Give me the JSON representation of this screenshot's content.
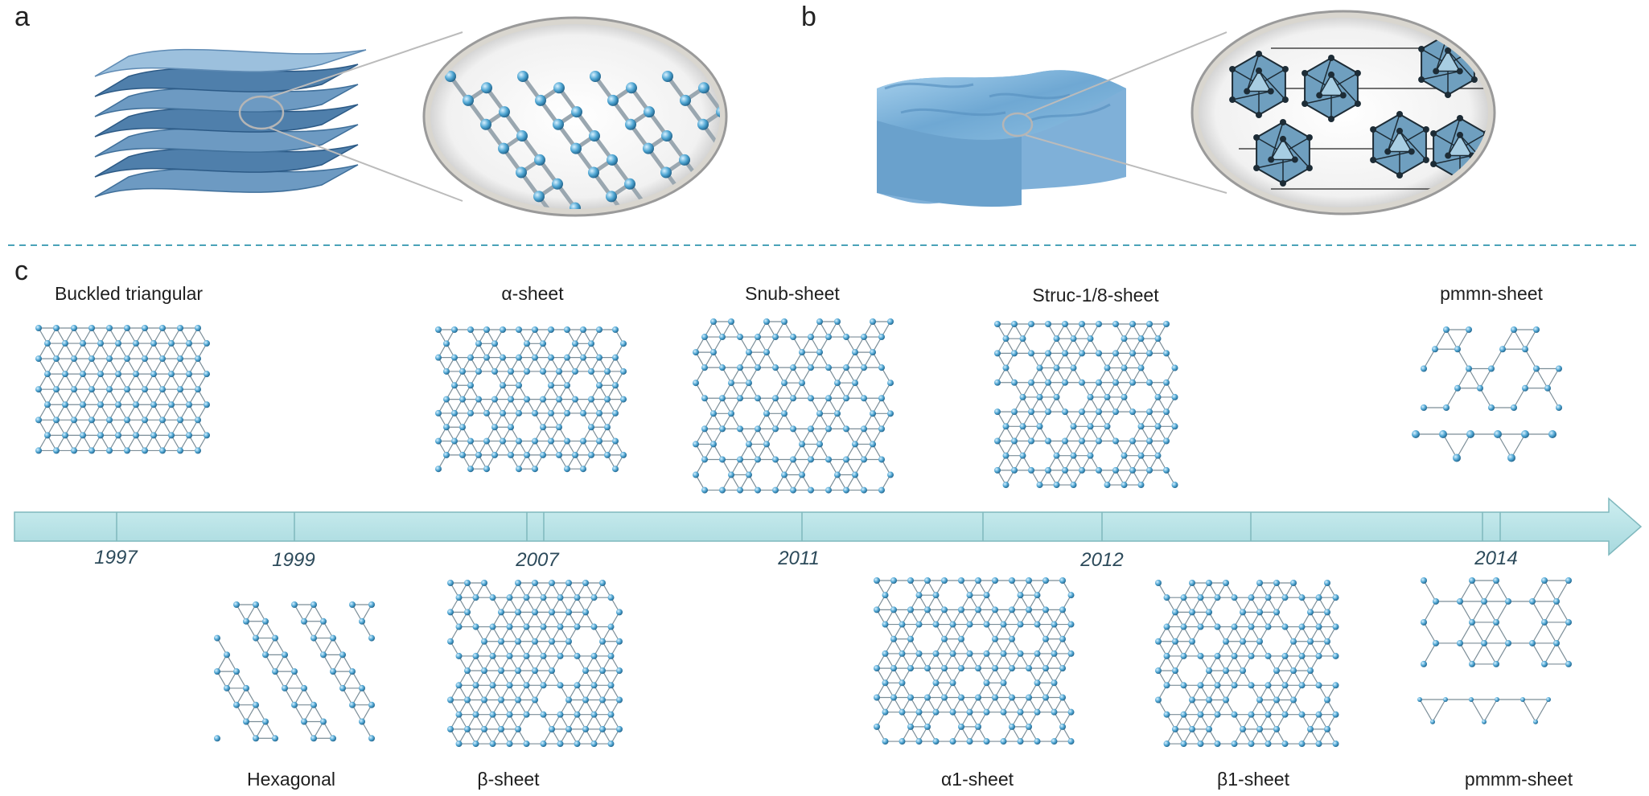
{
  "panels": {
    "a": "a",
    "b": "b",
    "c": "c"
  },
  "colors": {
    "sheet": "#5b88b3",
    "sheet_dark": "#2f5f8e",
    "bulk": "#7fb0d8",
    "atom": "#4fa6d3",
    "bond": "#7c8e98",
    "timeline": "#b9e2e6",
    "timeline_edge": "#7fb8bd",
    "divider": "#4aa3b8"
  },
  "timeline": {
    "years": [
      "1997",
      "1999",
      "2007",
      "2011",
      "2012",
      "2014"
    ]
  },
  "structures_top": [
    "Buckled triangular",
    "α-sheet",
    "Snub-sheet",
    "Struc-1/8-sheet",
    "pmmn-sheet"
  ],
  "structures_bottom": [
    "Hexagonal",
    "β-sheet",
    "α1-sheet",
    "β1-sheet",
    "pmmm-sheet"
  ]
}
